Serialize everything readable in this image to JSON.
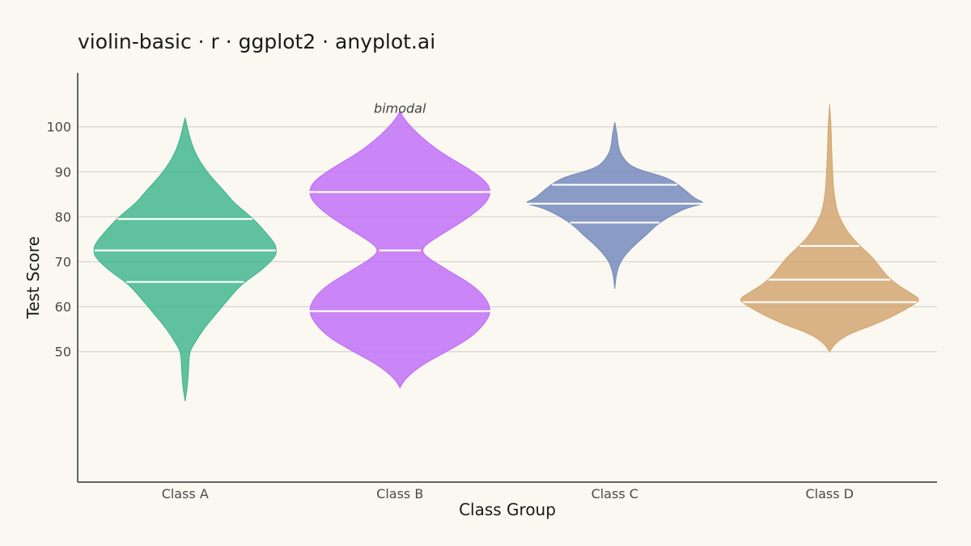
{
  "chart_data": {
    "type": "violin",
    "title": "violin-basic · r · ggplot2 · anyplot.ai",
    "xlabel": "Class Group",
    "ylabel": "Test Score",
    "categories": [
      "Class A",
      "Class B",
      "Class C",
      "Class D"
    ],
    "y_ticks": [
      50,
      60,
      70,
      80,
      90,
      100
    ],
    "ylim": [
      21,
      112
    ],
    "grid": "horizontal",
    "annotation": {
      "text": "bimodal",
      "category": "Class B",
      "y": 104
    },
    "series": [
      {
        "category": "Class A",
        "color": "#3DB58C",
        "quartiles": [
          65.5,
          72.5,
          79.5
        ],
        "profile": [
          [
            39,
            0
          ],
          [
            42,
            3
          ],
          [
            46,
            5
          ],
          [
            50,
            6
          ],
          [
            52,
            14
          ],
          [
            55,
            26
          ],
          [
            58,
            42
          ],
          [
            61,
            58
          ],
          [
            65,
            80
          ],
          [
            68,
            108
          ],
          [
            71,
            128
          ],
          [
            72.5,
            130
          ],
          [
            74,
            128
          ],
          [
            77,
            112
          ],
          [
            80,
            94
          ],
          [
            83,
            70
          ],
          [
            86,
            54
          ],
          [
            89,
            36
          ],
          [
            92,
            22
          ],
          [
            95,
            12
          ],
          [
            98,
            6
          ],
          [
            100,
            3
          ],
          [
            102,
            0
          ]
        ]
      },
      {
        "category": "Class B",
        "color": "#BF6BF7",
        "quartiles": [
          59,
          72.5,
          85.5
        ],
        "profile": [
          [
            42,
            0
          ],
          [
            44,
            6
          ],
          [
            47,
            24
          ],
          [
            50,
            52
          ],
          [
            53,
            78
          ],
          [
            56,
            94
          ],
          [
            59,
            102
          ],
          [
            62,
            96
          ],
          [
            65,
            80
          ],
          [
            68,
            54
          ],
          [
            71,
            30
          ],
          [
            72.5,
            24
          ],
          [
            74,
            30
          ],
          [
            77,
            54
          ],
          [
            80,
            78
          ],
          [
            83,
            96
          ],
          [
            85.5,
            102
          ],
          [
            88,
            96
          ],
          [
            91,
            74
          ],
          [
            94,
            48
          ],
          [
            97,
            28
          ],
          [
            100,
            12
          ],
          [
            102,
            4
          ],
          [
            103.5,
            0
          ]
        ]
      },
      {
        "category": "Class C",
        "color": "#7288BC",
        "quartiles": [
          78.7,
          82.9,
          87.1
        ],
        "profile": [
          [
            64,
            0
          ],
          [
            66,
            2
          ],
          [
            68,
            6
          ],
          [
            70,
            14
          ],
          [
            72,
            30
          ],
          [
            74,
            52
          ],
          [
            76,
            78
          ],
          [
            78,
            100
          ],
          [
            80,
            132
          ],
          [
            82,
            176
          ],
          [
            83,
            224
          ],
          [
            84,
            196
          ],
          [
            86,
            172
          ],
          [
            88,
            142
          ],
          [
            89,
            116
          ],
          [
            90,
            76
          ],
          [
            91,
            46
          ],
          [
            92,
            30
          ],
          [
            94,
            14
          ],
          [
            96,
            8
          ],
          [
            98,
            6
          ],
          [
            99,
            4
          ],
          [
            100,
            2
          ],
          [
            101,
            0
          ]
        ]
      },
      {
        "category": "Class D",
        "color": "#D2A46C",
        "quartiles": [
          61,
          66,
          73.5
        ],
        "profile": [
          [
            50,
            0
          ],
          [
            52,
            12
          ],
          [
            54,
            40
          ],
          [
            56,
            90
          ],
          [
            58,
            130
          ],
          [
            60,
            162
          ],
          [
            61.5,
            184
          ],
          [
            63,
            164
          ],
          [
            65,
            134
          ],
          [
            67,
            114
          ],
          [
            69,
            100
          ],
          [
            71,
            86
          ],
          [
            73,
            66
          ],
          [
            75,
            48
          ],
          [
            77,
            34
          ],
          [
            79,
            24
          ],
          [
            81,
            16
          ],
          [
            83,
            12
          ],
          [
            86,
            8
          ],
          [
            90,
            6
          ],
          [
            95,
            4
          ],
          [
            100,
            3
          ],
          [
            103,
            1
          ],
          [
            105,
            0
          ]
        ]
      }
    ]
  }
}
